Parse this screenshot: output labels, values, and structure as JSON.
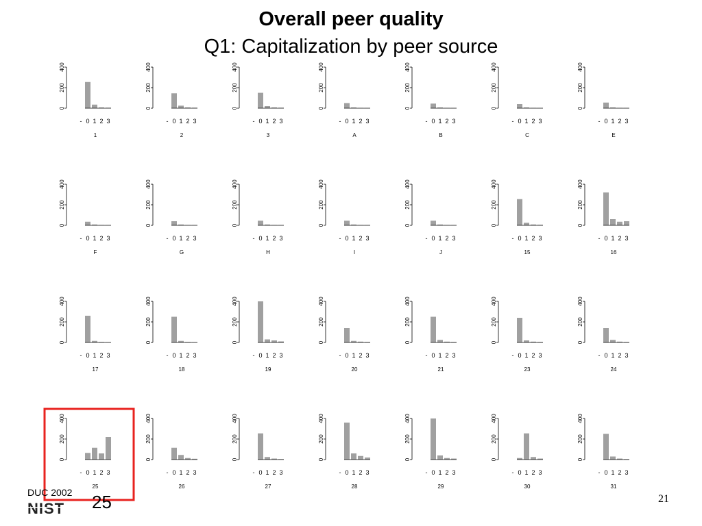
{
  "slide": {
    "title": "Overall peer quality",
    "subtitle": "Q1: Capitalization by peer source",
    "footer_conference": "DUC 2002",
    "footer_logo": "NIST",
    "footer_number": "25",
    "page_number": "21",
    "highlight_color": "#e8231f",
    "bar_color": "#a0a0a0"
  },
  "chart_data": {
    "type": "bar",
    "layout": "small-multiples-grid",
    "categories": [
      "-",
      "0",
      "1",
      "2",
      "3"
    ],
    "y_ticks": [
      "0",
      "200",
      "400"
    ],
    "ylim": [
      0,
      400
    ],
    "highlighted_panel": "25",
    "panels": [
      {
        "label": "1",
        "values": [
          0,
          255,
          35,
          8,
          5
        ]
      },
      {
        "label": "2",
        "values": [
          0,
          145,
          25,
          8,
          5
        ]
      },
      {
        "label": "3",
        "values": [
          0,
          150,
          20,
          8,
          5
        ]
      },
      {
        "label": "A",
        "values": [
          0,
          50,
          8,
          3,
          2
        ]
      },
      {
        "label": "B",
        "values": [
          0,
          45,
          8,
          3,
          2
        ]
      },
      {
        "label": "C",
        "values": [
          0,
          40,
          8,
          3,
          2
        ]
      },
      {
        "label": "E",
        "values": [
          0,
          55,
          8,
          3,
          2
        ]
      },
      {
        "label": "F",
        "values": [
          0,
          35,
          8,
          3,
          2
        ]
      },
      {
        "label": "G",
        "values": [
          0,
          40,
          8,
          3,
          2
        ]
      },
      {
        "label": "H",
        "values": [
          0,
          45,
          8,
          3,
          2
        ]
      },
      {
        "label": "I",
        "values": [
          0,
          45,
          8,
          3,
          2
        ]
      },
      {
        "label": "J",
        "values": [
          0,
          45,
          8,
          3,
          2
        ]
      },
      {
        "label": "15",
        "values": [
          0,
          255,
          25,
          8,
          5
        ]
      },
      {
        "label": "16",
        "values": [
          0,
          320,
          60,
          35,
          40
        ]
      },
      {
        "label": "17",
        "values": [
          0,
          260,
          15,
          5,
          3
        ]
      },
      {
        "label": "18",
        "values": [
          0,
          250,
          15,
          5,
          3
        ]
      },
      {
        "label": "19",
        "values": [
          0,
          400,
          30,
          20,
          10
        ]
      },
      {
        "label": "20",
        "values": [
          0,
          140,
          15,
          8,
          5
        ]
      },
      {
        "label": "21",
        "values": [
          0,
          250,
          25,
          8,
          5
        ]
      },
      {
        "label": "23",
        "values": [
          0,
          240,
          20,
          8,
          5
        ]
      },
      {
        "label": "24",
        "values": [
          0,
          140,
          25,
          8,
          5
        ]
      },
      {
        "label": "25",
        "values": [
          0,
          65,
          115,
          60,
          220
        ]
      },
      {
        "label": "26",
        "values": [
          0,
          115,
          45,
          15,
          8
        ]
      },
      {
        "label": "27",
        "values": [
          0,
          255,
          25,
          10,
          5
        ]
      },
      {
        "label": "28",
        "values": [
          0,
          360,
          60,
          35,
          20
        ]
      },
      {
        "label": "29",
        "values": [
          0,
          400,
          40,
          15,
          10
        ]
      },
      {
        "label": "30",
        "values": [
          0,
          15,
          255,
          25,
          10
        ]
      },
      {
        "label": "31",
        "values": [
          0,
          250,
          30,
          10,
          5
        ]
      }
    ]
  }
}
